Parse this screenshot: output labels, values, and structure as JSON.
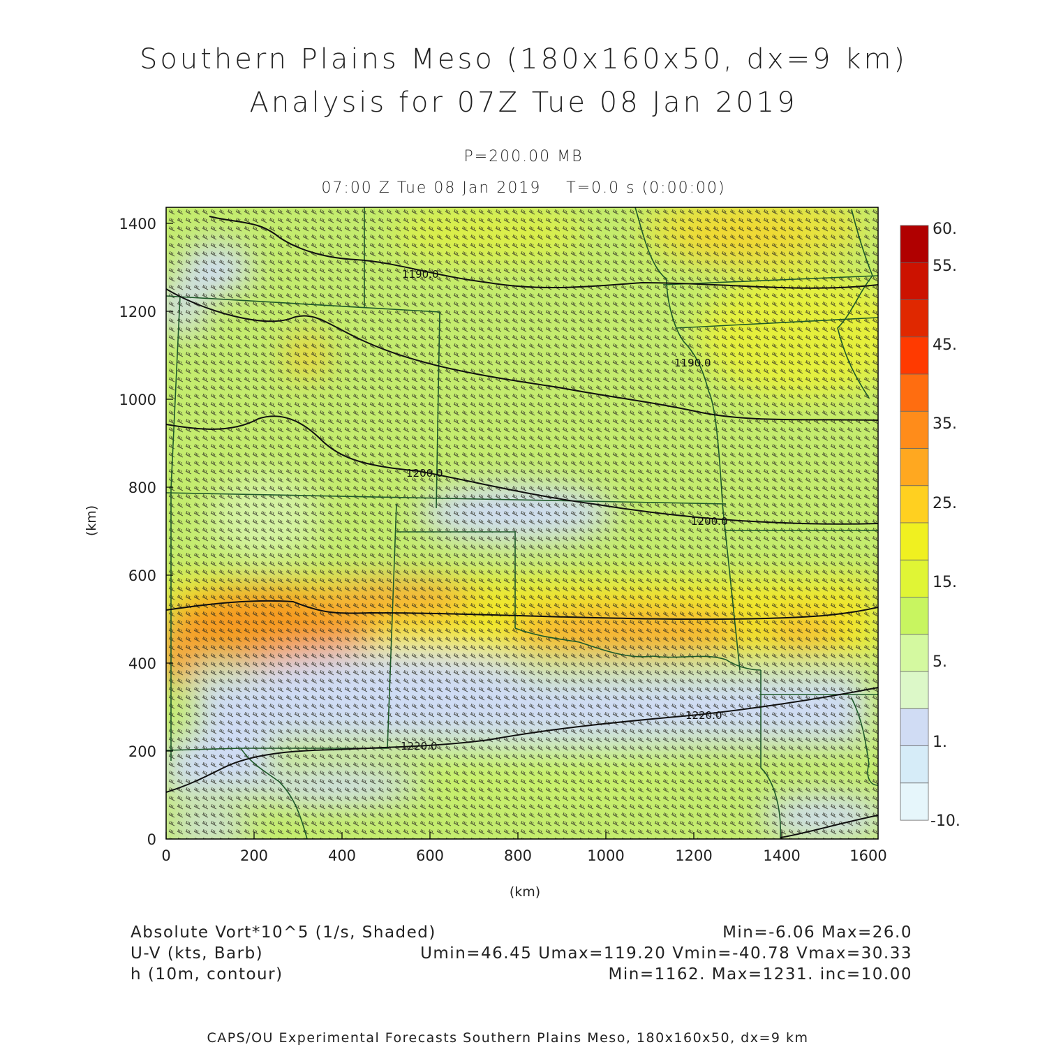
{
  "header": {
    "title_line1": "Southern Plains Meso (180x160x50, dx=9 km)",
    "title_line2": "Analysis for 07Z Tue 08 Jan 2019",
    "level": "P=200.00 MB",
    "valid_time": "07:00 Z Tue 08 Jan 2019    T=0.0 s (0:00:00)"
  },
  "axes": {
    "x_label": "(km)",
    "y_label": "(km)",
    "x_ticks": [
      "0",
      "200",
      "400",
      "600",
      "800",
      "1000",
      "1200",
      "1400",
      "1600"
    ],
    "y_ticks": [
      "0",
      "200",
      "400",
      "600",
      "800",
      "1000",
      "1200",
      "1400"
    ],
    "x_range_km": [
      0,
      1620
    ],
    "y_range_km": [
      0,
      1440
    ]
  },
  "colorbar": {
    "labels": [
      "60.",
      "55.",
      "45.",
      "35.",
      "25.",
      "15.",
      "5.",
      "1.",
      "-10."
    ],
    "colors": [
      "#b00000",
      "#cc1200",
      "#e02800",
      "#ff3a00",
      "#ff6d10",
      "#ff8c1a",
      "#ffa820",
      "#ffd020",
      "#f0f020",
      "#e0f535",
      "#c8f560",
      "#d4f9a0",
      "#dcf8c8",
      "#d0dcf4",
      "#d6ecf8",
      "#e6f6fb"
    ]
  },
  "contour_labels": [
    "1190.0",
    "1190.0",
    "1200.0",
    "1200.0",
    "1220.0",
    "1220.0"
  ],
  "legend": {
    "field1_name": "Absolute Vort*10^5 (1/s, Shaded)",
    "field1_stats": "Min=-6.06 Max=26.0",
    "field2_name": "U-V (kts, Barb)",
    "field2_stats": "Umin=46.45 Umax=119.20 Vmin=-40.78 Vmax=30.33",
    "field3_name": "h (10m, contour)",
    "field3_stats": "Min=1162. Max=1231. inc=10.00"
  },
  "credit": "CAPS/OU Experimental Forecasts  Southern Plains Meso, 180x160x50, dx=9 km"
}
